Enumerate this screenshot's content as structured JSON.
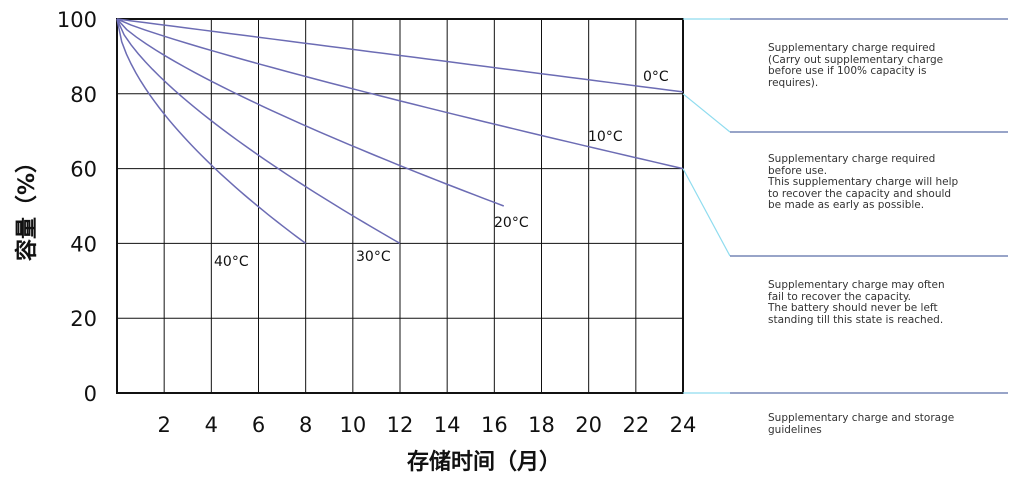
{
  "colors": {
    "curve": "#6c6cb4",
    "grid": "#111111",
    "connector": "#8fdcef",
    "divider": "#5a6ea8"
  },
  "chart_data": {
    "type": "line",
    "xlabel": "存储时间（月）",
    "ylabel": "容量（%）",
    "xlim": [
      0,
      24
    ],
    "ylim": [
      0,
      100
    ],
    "x_ticks": [
      "2",
      "4",
      "6",
      "8",
      "10",
      "12",
      "14",
      "16",
      "18",
      "20",
      "22",
      "24"
    ],
    "y_ticks": [
      "0",
      "20",
      "40",
      "60",
      "80",
      "100"
    ],
    "grid": true,
    "series": [
      {
        "name": "0°C",
        "x": [
          0,
          24
        ],
        "y": [
          100,
          80.5
        ]
      },
      {
        "name": "10°C",
        "x": [
          0,
          24
        ],
        "y": [
          100,
          60
        ]
      },
      {
        "name": "20°C",
        "x": [
          0,
          16.4
        ],
        "y": [
          100,
          50
        ]
      },
      {
        "name": "30°C",
        "x": [
          0,
          12
        ],
        "y": [
          100,
          40
        ]
      },
      {
        "name": "40°C",
        "x": [
          0,
          8
        ],
        "y": [
          100,
          40
        ]
      }
    ]
  },
  "guidelines": {
    "items": [
      {
        "text": "Supplementary charge required\n(Carry out supplementary charge\nbefore use if 100% capacity is\nrequires)."
      },
      {
        "text": "Supplementary charge required\nbefore use.\nThis supplementary charge will help\nto recover the capacity and should\nbe made as early as possible."
      },
      {
        "text": "Supplementary charge may often\nfail to recover the capacity.\nThe battery should never be left\nstanding till this state is reached."
      },
      {
        "text": "Supplementary charge and storage\nguidelines"
      }
    ]
  }
}
